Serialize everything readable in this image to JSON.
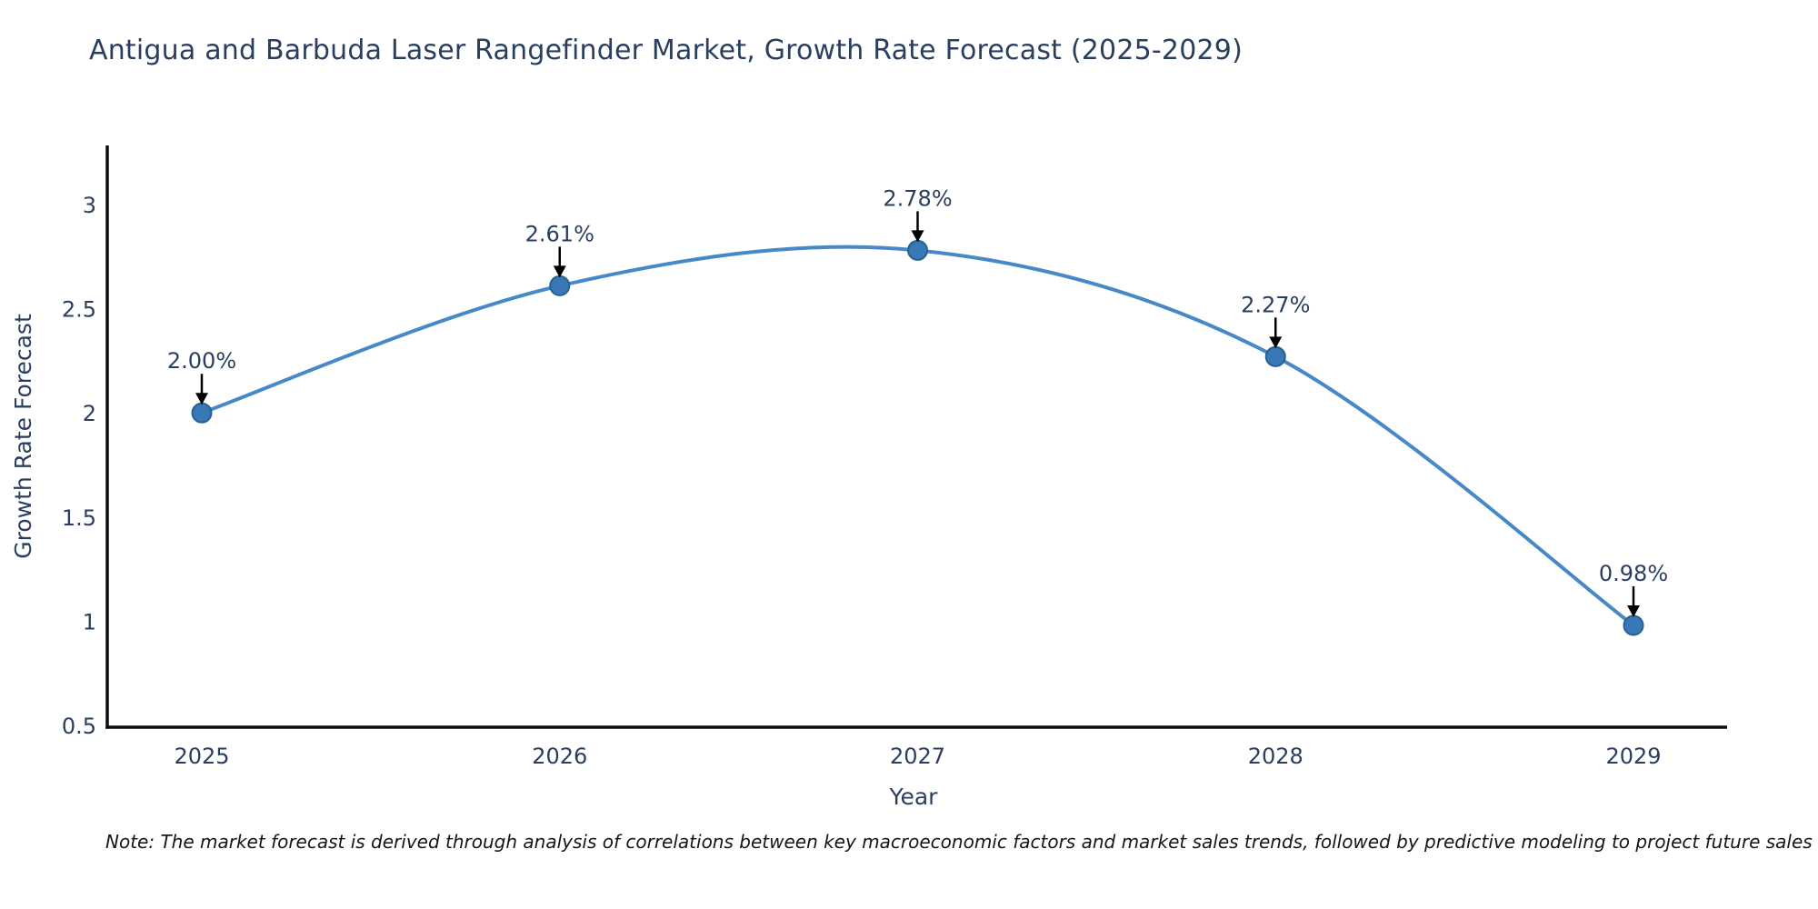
{
  "title": "Antigua and Barbuda Laser Rangefinder Market, Growth Rate Forecast (2025-2029)",
  "note": "Note: The market forecast is derived through analysis of correlations between key macroeconomic factors and market sales trends, followed by predictive modeling to project future sales",
  "chart_data": {
    "type": "line",
    "title": "Antigua and Barbuda Laser Rangefinder Market, Growth Rate Forecast (2025-2029)",
    "xlabel": "Year",
    "ylabel": "Growth Rate Forecast",
    "categories": [
      "2025",
      "2026",
      "2027",
      "2028",
      "2029"
    ],
    "values": [
      2.0,
      2.61,
      2.78,
      2.27,
      0.98
    ],
    "data_labels": [
      "2.00%",
      "2.61%",
      "2.78%",
      "2.27%",
      "0.98%"
    ],
    "series_name": "Growth Rate Forecast",
    "line_shape": "spline",
    "markers": true,
    "grid": false,
    "legend": "none",
    "ylim": [
      0.5,
      3.0
    ],
    "yticks": [
      0.5,
      1,
      1.5,
      2,
      2.5,
      3
    ],
    "annotation_style": "value label with downward black arrow to point",
    "colors": {
      "line": "#4789c8",
      "marker_fill": "#3879b5",
      "marker_edge": "#27608f",
      "text": "#2a3f5f",
      "axis": "#0d0d0d",
      "arrow": "#000000"
    }
  }
}
